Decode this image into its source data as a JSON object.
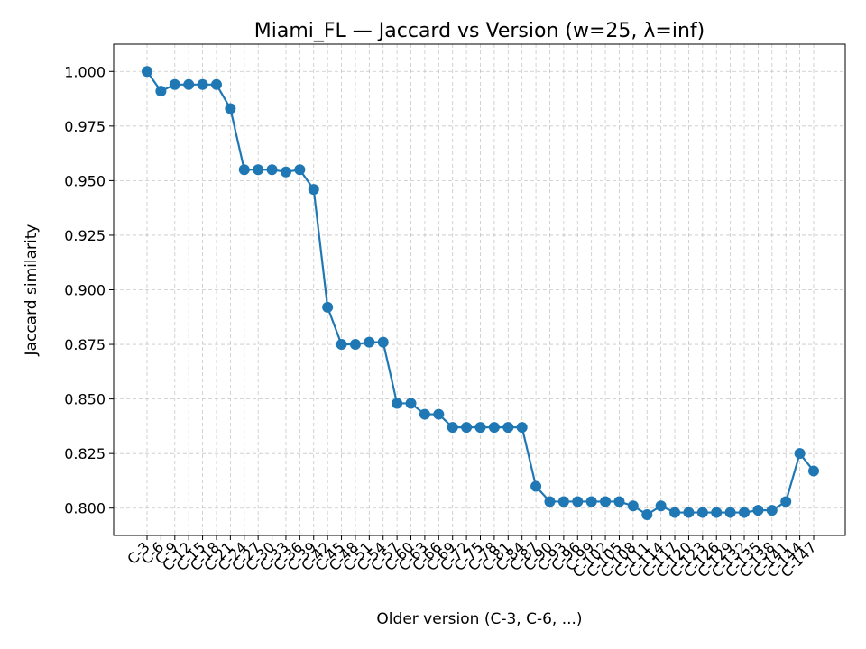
{
  "chart_data": {
    "type": "line",
    "title": "Miami_FL — Jaccard vs Version (w=25, λ=inf)",
    "xlabel": "Older version (C-3, C-6, ...)",
    "ylabel": "Jaccard similarity",
    "ylim": [
      0.7875,
      1.0125
    ],
    "yticks": [
      "0.800",
      "0.825",
      "0.850",
      "0.875",
      "0.900",
      "0.925",
      "0.950",
      "0.975",
      "1.000"
    ],
    "grid": true,
    "color": "#1f77b4",
    "categories": [
      "C-3",
      "C-6",
      "C-9",
      "C-12",
      "C-15",
      "C-18",
      "C-21",
      "C-24",
      "C-27",
      "C-30",
      "C-33",
      "C-36",
      "C-39",
      "C-42",
      "C-45",
      "C-48",
      "C-51",
      "C-54",
      "C-57",
      "C-60",
      "C-63",
      "C-66",
      "C-69",
      "C-72",
      "C-75",
      "C-78",
      "C-81",
      "C-84",
      "C-87",
      "C-90",
      "C-93",
      "C-96",
      "C-99",
      "C-102",
      "C-105",
      "C-108",
      "C-111",
      "C-114",
      "C-117",
      "C-120",
      "C-123",
      "C-126",
      "C-129",
      "C-132",
      "C-135",
      "C-138",
      "C-141",
      "C-144",
      "C-147"
    ],
    "values": [
      1.0,
      0.991,
      0.994,
      0.994,
      0.994,
      0.994,
      0.983,
      0.955,
      0.955,
      0.955,
      0.954,
      0.955,
      0.946,
      0.892,
      0.875,
      0.875,
      0.876,
      0.876,
      0.848,
      0.848,
      0.843,
      0.843,
      0.837,
      0.837,
      0.837,
      0.837,
      0.837,
      0.837,
      0.81,
      0.803,
      0.803,
      0.803,
      0.803,
      0.803,
      0.803,
      0.801,
      0.797,
      0.801,
      0.798,
      0.798,
      0.798,
      0.798,
      0.798,
      0.798,
      0.799,
      0.799,
      0.803,
      0.825,
      0.817
    ]
  }
}
